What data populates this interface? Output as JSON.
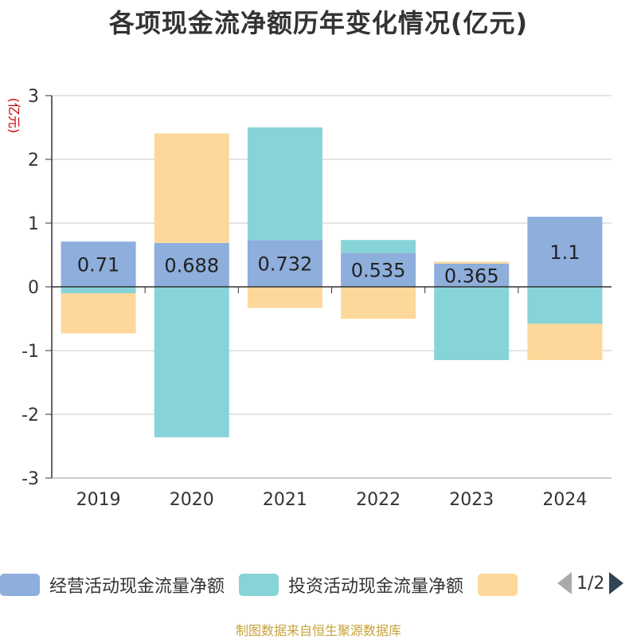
{
  "chart_data": {
    "type": "bar",
    "stacked": true,
    "title": "各项现金流净额历年变化情况(亿元)",
    "ylabel": "(亿元)",
    "xlabel": "",
    "ylim": [
      -3,
      3
    ],
    "yticks": [
      3,
      2,
      1,
      0,
      -1,
      -2,
      -3
    ],
    "grid": true,
    "legend_position": "bottom",
    "categories": [
      "2019",
      "2020",
      "2021",
      "2022",
      "2023",
      "2024"
    ],
    "series": [
      {
        "name": "经营活动现金流量净额",
        "color": "#8eaedc",
        "values": [
          0.71,
          0.688,
          0.732,
          0.535,
          0.365,
          1.1
        ],
        "labels": [
          "0.71",
          "0.688",
          "0.732",
          "0.535",
          "0.365",
          "1.1"
        ]
      },
      {
        "name": "投资活动现金流量净额",
        "color": "#86d4d8",
        "values": [
          -0.1,
          -2.36,
          1.77,
          0.2,
          -1.15,
          -0.58
        ]
      },
      {
        "name": "",
        "color": "#fdd89a",
        "values": [
          -0.63,
          1.72,
          -0.33,
          -0.5,
          0.03,
          -0.57
        ]
      }
    ]
  },
  "legend": {
    "items": [
      "经营活动现金流量净额",
      "投资活动现金流量净额",
      ""
    ],
    "page_indicator": "1/2"
  },
  "footer": {
    "source": "制图数据来自恒生聚源数据库"
  }
}
